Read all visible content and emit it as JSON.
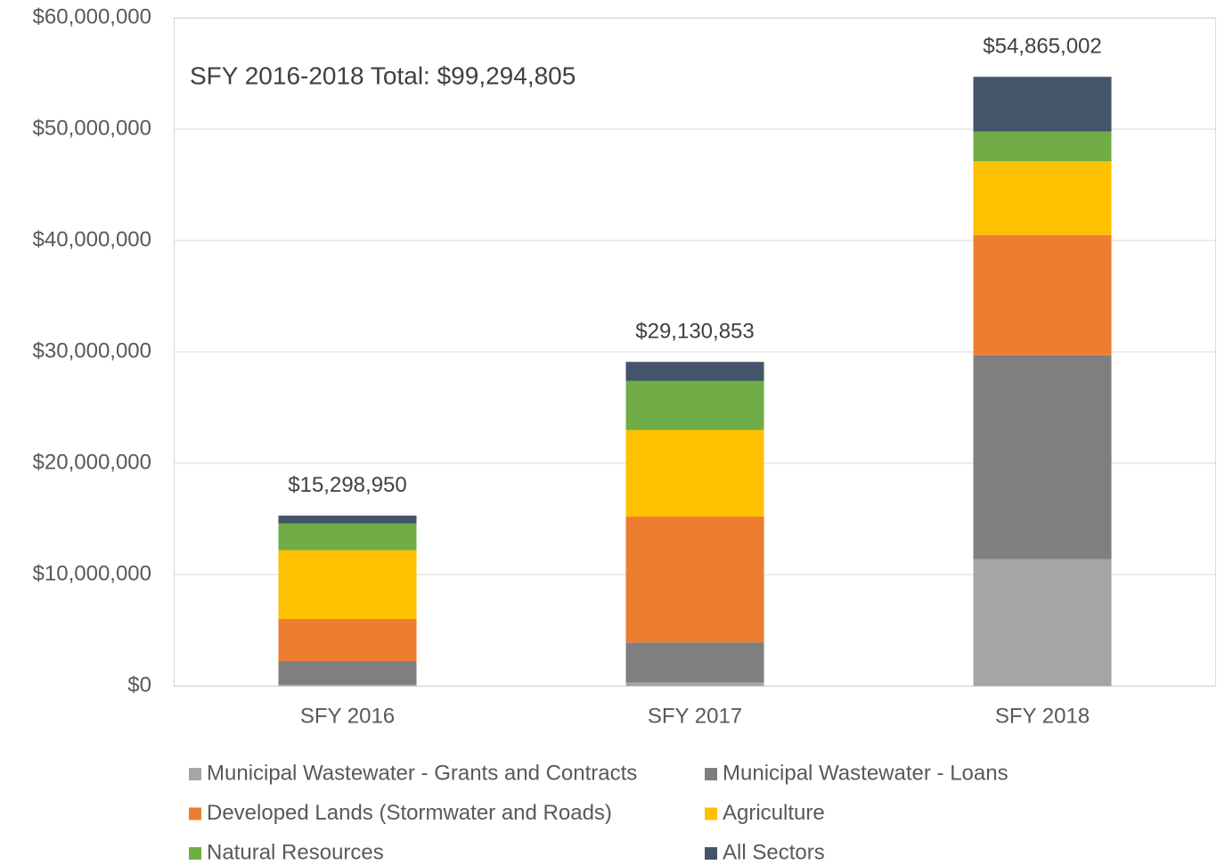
{
  "chart_data": {
    "type": "stacked_bar",
    "annotation": "SFY 2016-2018 Total: $99,294,805",
    "categories": [
      "SFY 2016",
      "SFY 2017",
      "SFY 2018"
    ],
    "series": [
      {
        "name": "Municipal Wastewater - Grants and Contracts",
        "color": "#a5a5a5",
        "values": [
          100000,
          300000,
          11400000
        ]
      },
      {
        "name": "Municipal Wastewater - Loans",
        "color": "#7f7f7f",
        "values": [
          2100000,
          3600000,
          18300000
        ]
      },
      {
        "name": "Developed Lands (Stormwater and Roads)",
        "color": "#ed7d31",
        "values": [
          3800000,
          11300000,
          10800000
        ]
      },
      {
        "name": "Agriculture",
        "color": "#ffc000",
        "values": [
          6200000,
          7800000,
          6600000
        ]
      },
      {
        "name": "Natural Resources",
        "color": "#70ad47",
        "values": [
          2400000,
          4400000,
          2700000
        ]
      },
      {
        "name": "All Sectors",
        "color": "#44546a",
        "values": [
          700000,
          1700000,
          4900000
        ]
      }
    ],
    "totals": {
      "values": [
        15298950,
        29130853,
        54865002
      ],
      "value_labels": [
        "$15,298,950",
        "$29,130,853",
        "$54,865,002"
      ]
    },
    "ylim": [
      0,
      60000000
    ],
    "yticks": [
      {
        "value": 0,
        "label": "$0"
      },
      {
        "value": 10000000,
        "label": "$10,000,000"
      },
      {
        "value": 20000000,
        "label": "$20,000,000"
      },
      {
        "value": 30000000,
        "label": "$30,000,000"
      },
      {
        "value": 40000000,
        "label": "$40,000,000"
      },
      {
        "value": 50000000,
        "label": "$50,000,000"
      },
      {
        "value": 60000000,
        "label": "$60,000,000"
      }
    ],
    "grid": true
  }
}
